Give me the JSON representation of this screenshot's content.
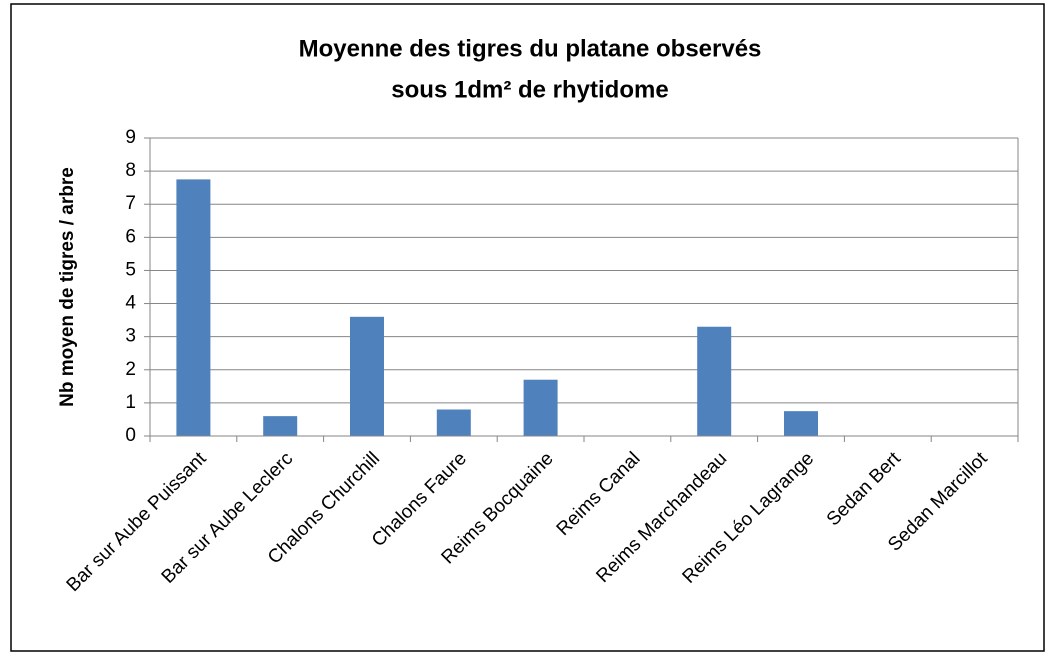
{
  "chart_data": {
    "type": "bar",
    "title": [
      "Moyenne des tigres du platane observés",
      "sous 1dm² de rhytidome"
    ],
    "y_label": "Nb moyen de tigres / arbre",
    "categories": [
      "Bar sur Aube Puissant",
      "Bar sur Aube Leclerc",
      "Chalons Churchill",
      "Chalons Faure",
      "Reims Bocquaine",
      "Reims Canal",
      "Reims Marchandeau",
      "Reims Léo Lagrange",
      "Sedan Bert",
      "Sedan Marcillot"
    ],
    "values": [
      7.75,
      0.6,
      3.6,
      0.8,
      1.7,
      0,
      3.3,
      0.75,
      0,
      0
    ],
    "color": "#4f81bd",
    "ylim": [
      0,
      9
    ],
    "yticks": [
      0,
      1,
      2,
      3,
      4,
      5,
      6,
      7,
      8,
      9
    ],
    "grid": true
  }
}
